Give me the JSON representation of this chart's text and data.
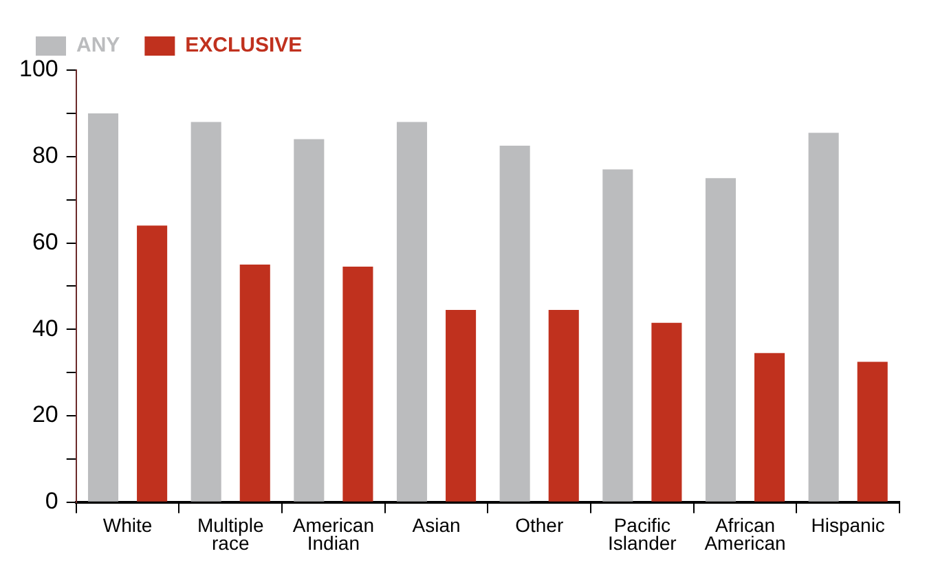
{
  "chart_data": {
    "type": "bar",
    "categories": [
      "White",
      "Multiple race",
      "American Indian",
      "Asian",
      "Other",
      "Pacific Islander",
      "African American",
      "Hispanic"
    ],
    "series": [
      {
        "name": "ANY",
        "color": "#bbbcbe",
        "values": [
          90,
          88,
          84,
          88,
          82.5,
          77,
          75,
          85.5
        ]
      },
      {
        "name": "EXCLUSIVE",
        "color": "#c0311e",
        "values": [
          64,
          55,
          54.5,
          44.5,
          44.5,
          41.5,
          34.5,
          32.5
        ]
      }
    ],
    "ylim": [
      0,
      100
    ],
    "yticks": [
      0,
      {
        "value": 10,
        "label": null
      },
      20,
      {
        "value": 30,
        "label": null
      },
      40,
      {
        "value": 50,
        "label": null
      },
      60,
      {
        "value": 70,
        "label": null
      },
      80,
      {
        "value": 90,
        "label": null
      },
      100
    ],
    "grid": false,
    "legend": "top left"
  }
}
